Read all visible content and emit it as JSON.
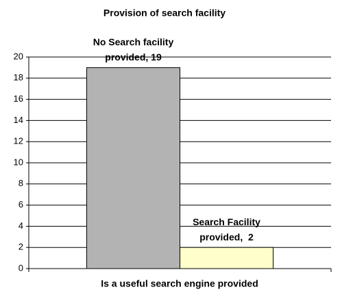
{
  "chart_data": {
    "type": "bar",
    "title": "Provision of search facility",
    "x_label": "Is a useful search engine provided",
    "series": [
      {
        "color": "#b3b3b3",
        "values": [
          19
        ],
        "value_labels": [
          "No Search facility provided, 19"
        ]
      },
      {
        "color": "#ffffcc",
        "values": [
          2
        ],
        "value_labels": [
          "Search Facility provided,  2"
        ]
      }
    ],
    "ylim": [
      0,
      20
    ],
    "yticks": [
      0,
      2,
      4,
      6,
      8,
      10,
      12,
      14,
      16,
      18,
      20
    ],
    "grid": true
  }
}
